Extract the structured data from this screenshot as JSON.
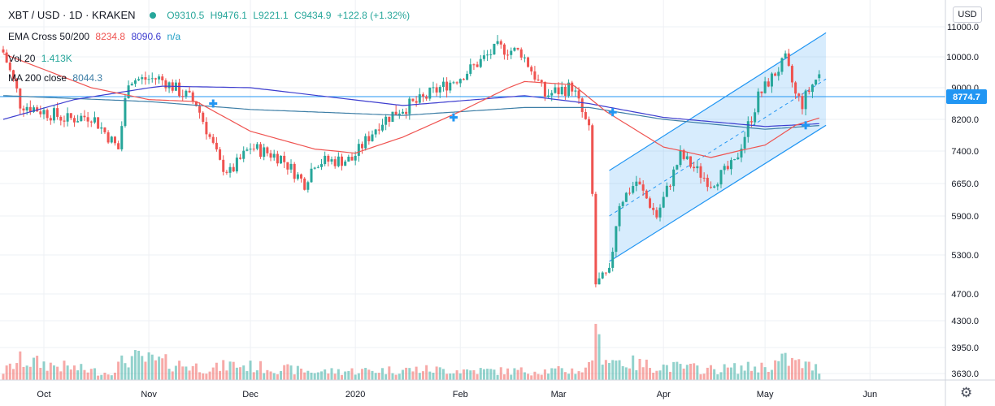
{
  "header": {
    "symbol": "XBT / USD · 1D · KRAKEN",
    "open": "O9310.5",
    "high": "H9476.1",
    "low": "L9221.1",
    "close": "C9434.9",
    "change": "+122.8 (+1.32%)"
  },
  "indicators": {
    "ema_label": "EMA Cross 50/200",
    "ema_fast": "8234.8",
    "ema_slow": "8090.6",
    "ema_na": "n/a",
    "vol_label": "Vol 20",
    "vol_value": "1.413K",
    "ma_label": "MA 200 close",
    "ma_value": "8044.3"
  },
  "price_axis": {
    "currency_button": "USD",
    "current_price": "8774.7"
  },
  "chart_data": {
    "type": "candlestick",
    "title": "XBT / USD · 1D · KRAKEN",
    "y_ticks": [
      11000,
      10000,
      9000,
      8200,
      7400,
      6650,
      5900,
      5300,
      4700,
      4300,
      3950,
      3630
    ],
    "y_tick_labels": [
      "11000.0",
      "10000.0",
      "9000.0",
      "8200.0",
      "7400.0",
      "6650.0",
      "5900.0",
      "5300.0",
      "4700.0",
      "4300.0",
      "3950.0",
      "3630.0"
    ],
    "x_tick_labels": [
      "Oct",
      "Nov",
      "Dec",
      "2020",
      "Feb",
      "Mar",
      "Apr",
      "May",
      "Jun"
    ],
    "date_range": [
      "2019-09-19",
      "2020-05-17"
    ],
    "price_anchors": [
      [
        "2019-09-19",
        10150
      ],
      [
        "2019-09-24",
        8600
      ],
      [
        "2019-10-08",
        8200
      ],
      [
        "2019-10-15",
        8300
      ],
      [
        "2019-10-23",
        7450
      ],
      [
        "2019-10-26",
        9250
      ],
      [
        "2019-11-04",
        9300
      ],
      [
        "2019-11-15",
        8600
      ],
      [
        "2019-11-22",
        7100
      ],
      [
        "2019-11-25",
        6900
      ],
      [
        "2019-12-01",
        7500
      ],
      [
        "2019-12-10",
        7250
      ],
      [
        "2019-12-17",
        6650
      ],
      [
        "2019-12-20",
        7150
      ],
      [
        "2019-12-31",
        7200
      ],
      [
        "2020-01-08",
        8100
      ],
      [
        "2020-01-14",
        8450
      ],
      [
        "2020-01-20",
        8650
      ],
      [
        "2020-02-01",
        9350
      ],
      [
        "2020-02-12",
        10300
      ],
      [
        "2020-02-19",
        10150
      ],
      [
        "2020-02-26",
        8800
      ],
      [
        "2020-03-05",
        9050
      ],
      [
        "2020-03-10",
        7900
      ],
      [
        "2020-03-12",
        4850
      ],
      [
        "2020-03-16",
        5000
      ],
      [
        "2020-03-19",
        6200
      ],
      [
        "2020-03-24",
        6700
      ],
      [
        "2020-03-30",
        5900
      ],
      [
        "2020-04-06",
        7300
      ],
      [
        "2020-04-15",
        6650
      ],
      [
        "2020-04-22",
        7100
      ],
      [
        "2020-04-29",
        8750
      ],
      [
        "2020-05-07",
        9900
      ],
      [
        "2020-05-10",
        8800
      ],
      [
        "2020-05-12",
        8600
      ],
      [
        "2020-05-17",
        9434.9
      ]
    ],
    "volume_anchors": [
      [
        "2019-09-19",
        30
      ],
      [
        "2019-09-24",
        70
      ],
      [
        "2019-10-20",
        25
      ],
      [
        "2019-10-26",
        80
      ],
      [
        "2019-11-20",
        40
      ],
      [
        "2019-11-25",
        55
      ],
      [
        "2019-12-20",
        30
      ],
      [
        "2020-01-20",
        38
      ],
      [
        "2020-02-15",
        32
      ],
      [
        "2020-03-09",
        35
      ],
      [
        "2020-03-12",
        140
      ],
      [
        "2020-03-16",
        75
      ],
      [
        "2020-03-25",
        55
      ],
      [
        "2020-04-15",
        38
      ],
      [
        "2020-05-01",
        48
      ],
      [
        "2020-05-07",
        72
      ],
      [
        "2020-05-10",
        62
      ],
      [
        "2020-05-17",
        40
      ]
    ],
    "ema50_anchors": [
      [
        "2019-09-19",
        10100
      ],
      [
        "2019-10-15",
        9000
      ],
      [
        "2019-11-01",
        8700
      ],
      [
        "2019-11-15",
        8650
      ],
      [
        "2019-12-01",
        7900
      ],
      [
        "2019-12-20",
        7450
      ],
      [
        "2020-01-01",
        7350
      ],
      [
        "2020-01-15",
        7750
      ],
      [
        "2020-02-01",
        8400
      ],
      [
        "2020-02-20",
        9200
      ],
      [
        "2020-03-05",
        9100
      ],
      [
        "2020-03-15",
        8400
      ],
      [
        "2020-04-01",
        7500
      ],
      [
        "2020-04-15",
        7250
      ],
      [
        "2020-05-01",
        7550
      ],
      [
        "2020-05-10",
        8050
      ],
      [
        "2020-05-17",
        8234.8
      ]
    ],
    "ema200_anchors": [
      [
        "2019-09-19",
        8200
      ],
      [
        "2019-10-10",
        8700
      ],
      [
        "2019-11-05",
        9050
      ],
      [
        "2019-12-01",
        9000
      ],
      [
        "2020-01-15",
        8550
      ],
      [
        "2020-02-20",
        8800
      ],
      [
        "2020-03-10",
        8600
      ],
      [
        "2020-04-01",
        8250
      ],
      [
        "2020-05-01",
        8020
      ],
      [
        "2020-05-17",
        8090.6
      ]
    ],
    "ma200_anchors": [
      [
        "2019-09-19",
        8800
      ],
      [
        "2019-11-01",
        8650
      ],
      [
        "2019-12-01",
        8450
      ],
      [
        "2020-01-15",
        8300
      ],
      [
        "2020-02-20",
        8500
      ],
      [
        "2020-03-10",
        8500
      ],
      [
        "2020-04-01",
        8200
      ],
      [
        "2020-05-01",
        7950
      ],
      [
        "2020-05-17",
        8044.3
      ]
    ],
    "cross_marks": [
      [
        "2019-11-20",
        8600
      ],
      [
        "2020-01-30",
        8250
      ],
      [
        "2020-03-17",
        8380
      ],
      [
        "2020-05-13",
        8050
      ]
    ],
    "channel": {
      "start": [
        "2020-03-16",
        6950
      ],
      "end": [
        "2020-05-19",
        10800
      ],
      "lower_start": [
        "2020-03-16",
        5200
      ],
      "lower_end": [
        "2020-05-19",
        8050
      ]
    },
    "horizontal_line_price": 8774.7
  }
}
